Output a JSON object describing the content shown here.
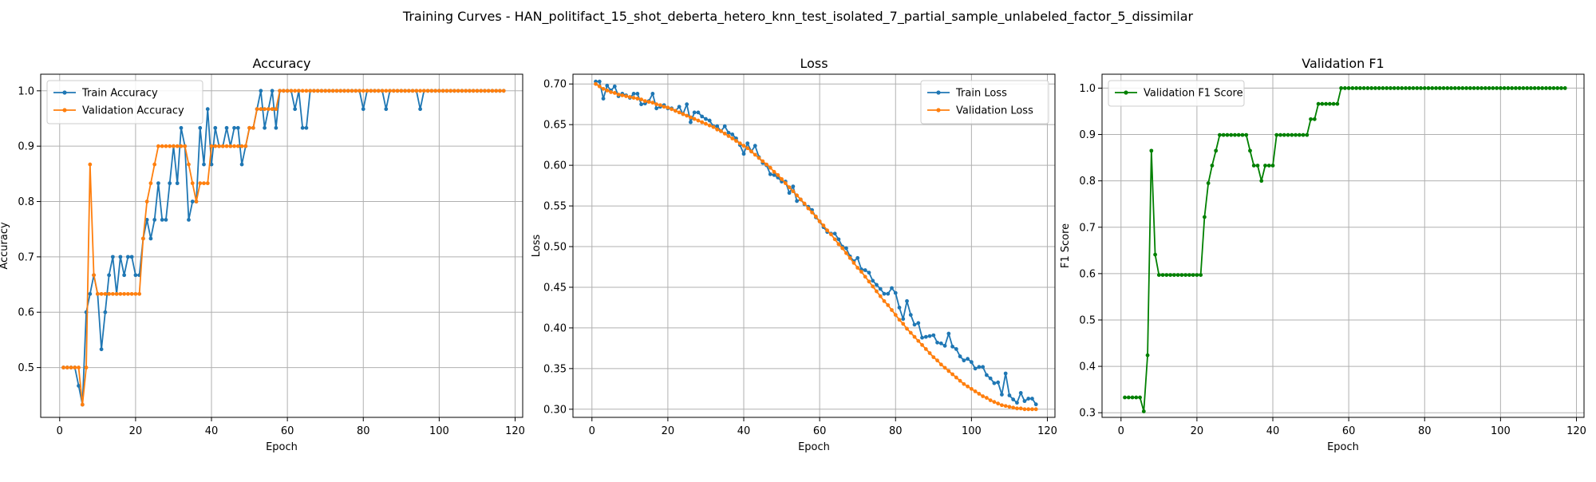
{
  "suptitle": "Training Curves - HAN_politifact_15_shot_deberta_hetero_knn_test_isolated_7_partial_sample_unlabeled_factor_5_dissimilar",
  "colors": {
    "blue": "#1f77b4",
    "orange": "#ff7f0e",
    "green": "#008000",
    "grid": "#b0b0b0"
  },
  "chart_data": [
    {
      "type": "line",
      "title": "Accuracy",
      "xlabel": "Epoch",
      "ylabel": "Accuracy",
      "xlim": [
        -5,
        122
      ],
      "ylim": [
        0.41,
        1.03
      ],
      "xticks": [
        0,
        20,
        40,
        60,
        80,
        100,
        120
      ],
      "yticks": [
        0.5,
        0.6,
        0.7,
        0.8,
        0.9,
        1.0
      ],
      "ytick_decimals": 1,
      "grid": true,
      "legend": "upper-left",
      "series": [
        {
          "name": "Train Accuracy",
          "color": "#1f77b4",
          "x_start": 1,
          "values": [
            0.5,
            0.5,
            0.5,
            0.5,
            0.467,
            0.433,
            0.6,
            0.633,
            0.667,
            0.633,
            0.533,
            0.6,
            0.667,
            0.7,
            0.633,
            0.7,
            0.667,
            0.7,
            0.7,
            0.667,
            0.667,
            0.733,
            0.767,
            0.733,
            0.767,
            0.833,
            0.767,
            0.767,
            0.833,
            0.9,
            0.833,
            0.933,
            0.9,
            0.767,
            0.8,
            0.8,
            0.933,
            0.867,
            0.967,
            0.867,
            0.933,
            0.9,
            0.9,
            0.933,
            0.9,
            0.933,
            0.933,
            0.867,
            0.9,
            0.933,
            0.933,
            0.967,
            1.0,
            0.933,
            0.967,
            1.0,
            0.933,
            1.0,
            1.0,
            1.0,
            1.0,
            0.967,
            1.0,
            0.933,
            0.933,
            1.0,
            1.0,
            1.0,
            1.0,
            1.0,
            1.0,
            1.0,
            1.0,
            1.0,
            1.0,
            1.0,
            1.0,
            1.0,
            1.0,
            0.967,
            1.0,
            1.0,
            1.0,
            1.0,
            1.0,
            0.967,
            1.0,
            1.0,
            1.0,
            1.0,
            1.0,
            1.0,
            1.0,
            1.0,
            0.967,
            1.0,
            1.0,
            1.0,
            1.0,
            1.0,
            1.0,
            1.0,
            1.0,
            1.0,
            1.0,
            1.0,
            1.0,
            1.0,
            1.0,
            1.0,
            1.0,
            1.0,
            1.0,
            1.0,
            1.0,
            1.0,
            1.0
          ]
        },
        {
          "name": "Validation Accuracy",
          "color": "#ff7f0e",
          "x_start": 1,
          "values": [
            0.5,
            0.5,
            0.5,
            0.5,
            0.5,
            0.433,
            0.5,
            0.867,
            0.667,
            0.633,
            0.633,
            0.633,
            0.633,
            0.633,
            0.633,
            0.633,
            0.633,
            0.633,
            0.633,
            0.633,
            0.633,
            0.733,
            0.8,
            0.833,
            0.867,
            0.9,
            0.9,
            0.9,
            0.9,
            0.9,
            0.9,
            0.9,
            0.9,
            0.867,
            0.833,
            0.8,
            0.833,
            0.833,
            0.833,
            0.9,
            0.9,
            0.9,
            0.9,
            0.9,
            0.9,
            0.9,
            0.9,
            0.9,
            0.9,
            0.933,
            0.933,
            0.967,
            0.967,
            0.967,
            0.967,
            0.967,
            0.967,
            1.0,
            1.0,
            1.0,
            1.0,
            1.0,
            1.0,
            1.0,
            1.0,
            1.0,
            1.0,
            1.0,
            1.0,
            1.0,
            1.0,
            1.0,
            1.0,
            1.0,
            1.0,
            1.0,
            1.0,
            1.0,
            1.0,
            1.0,
            1.0,
            1.0,
            1.0,
            1.0,
            1.0,
            1.0,
            1.0,
            1.0,
            1.0,
            1.0,
            1.0,
            1.0,
            1.0,
            1.0,
            1.0,
            1.0,
            1.0,
            1.0,
            1.0,
            1.0,
            1.0,
            1.0,
            1.0,
            1.0,
            1.0,
            1.0,
            1.0,
            1.0,
            1.0,
            1.0,
            1.0,
            1.0,
            1.0,
            1.0,
            1.0,
            1.0,
            1.0
          ]
        }
      ]
    },
    {
      "type": "line",
      "title": "Loss",
      "xlabel": "Epoch",
      "ylabel": "Loss",
      "xlim": [
        -5,
        122
      ],
      "ylim": [
        0.29,
        0.712
      ],
      "xticks": [
        0,
        20,
        40,
        60,
        80,
        100,
        120
      ],
      "yticks": [
        0.3,
        0.35,
        0.4,
        0.45,
        0.5,
        0.55,
        0.6,
        0.65,
        0.7
      ],
      "ytick_decimals": 2,
      "grid": true,
      "legend": "upper-right",
      "series": [
        {
          "name": "Train Loss",
          "color": "#1f77b4",
          "x_start": 1,
          "values": [
            0.703,
            0.703,
            0.682,
            0.698,
            0.692,
            0.697,
            0.685,
            0.688,
            0.686,
            0.683,
            0.688,
            0.688,
            0.675,
            0.676,
            0.679,
            0.688,
            0.67,
            0.672,
            0.674,
            0.67,
            0.67,
            0.667,
            0.672,
            0.663,
            0.675,
            0.653,
            0.665,
            0.665,
            0.66,
            0.657,
            0.655,
            0.648,
            0.648,
            0.642,
            0.648,
            0.64,
            0.638,
            0.633,
            0.625,
            0.614,
            0.627,
            0.617,
            0.624,
            0.61,
            0.603,
            0.6,
            0.589,
            0.588,
            0.585,
            0.58,
            0.58,
            0.566,
            0.574,
            0.556,
            0.558,
            0.552,
            0.549,
            0.545,
            0.536,
            0.531,
            0.524,
            0.518,
            0.516,
            0.516,
            0.509,
            0.5,
            0.498,
            0.488,
            0.482,
            0.486,
            0.472,
            0.471,
            0.468,
            0.458,
            0.453,
            0.448,
            0.442,
            0.442,
            0.449,
            0.443,
            0.425,
            0.411,
            0.433,
            0.416,
            0.404,
            0.406,
            0.388,
            0.389,
            0.39,
            0.391,
            0.382,
            0.381,
            0.378,
            0.393,
            0.377,
            0.374,
            0.365,
            0.36,
            0.362,
            0.358,
            0.35,
            0.352,
            0.352,
            0.342,
            0.338,
            0.332,
            0.333,
            0.318,
            0.344,
            0.317,
            0.312,
            0.308,
            0.32,
            0.31,
            0.313,
            0.313,
            0.306
          ]
        },
        {
          "name": "Validation Loss",
          "color": "#ff7f0e",
          "x_start": 1,
          "values": [
            0.7,
            0.697,
            0.694,
            0.692,
            0.69,
            0.689,
            0.687,
            0.686,
            0.685,
            0.684,
            0.683,
            0.682,
            0.681,
            0.679,
            0.678,
            0.677,
            0.675,
            0.674,
            0.672,
            0.671,
            0.669,
            0.667,
            0.665,
            0.663,
            0.661,
            0.659,
            0.657,
            0.655,
            0.653,
            0.651,
            0.649,
            0.647,
            0.644,
            0.642,
            0.639,
            0.636,
            0.633,
            0.63,
            0.627,
            0.624,
            0.621,
            0.617,
            0.613,
            0.609,
            0.605,
            0.601,
            0.597,
            0.592,
            0.588,
            0.583,
            0.578,
            0.573,
            0.568,
            0.563,
            0.558,
            0.553,
            0.547,
            0.542,
            0.537,
            0.531,
            0.526,
            0.52,
            0.515,
            0.509,
            0.503,
            0.498,
            0.492,
            0.486,
            0.48,
            0.474,
            0.469,
            0.463,
            0.457,
            0.451,
            0.445,
            0.439,
            0.433,
            0.428,
            0.422,
            0.416,
            0.41,
            0.405,
            0.399,
            0.394,
            0.389,
            0.384,
            0.379,
            0.374,
            0.369,
            0.364,
            0.36,
            0.355,
            0.351,
            0.347,
            0.343,
            0.339,
            0.335,
            0.331,
            0.328,
            0.325,
            0.322,
            0.319,
            0.316,
            0.314,
            0.311,
            0.309,
            0.307,
            0.305,
            0.304,
            0.303,
            0.302,
            0.301,
            0.301,
            0.3,
            0.3,
            0.3,
            0.3
          ]
        }
      ]
    },
    {
      "type": "line",
      "title": "Validation F1",
      "xlabel": "Epoch",
      "ylabel": "F1 Score",
      "xlim": [
        -5,
        122
      ],
      "ylim": [
        0.29,
        1.03
      ],
      "xticks": [
        0,
        20,
        40,
        60,
        80,
        100,
        120
      ],
      "yticks": [
        0.3,
        0.4,
        0.5,
        0.6,
        0.7,
        0.8,
        0.9,
        1.0
      ],
      "ytick_decimals": 1,
      "grid": true,
      "legend": "upper-left",
      "series": [
        {
          "name": "Validation F1 Score",
          "color": "#008000",
          "x_start": 1,
          "values": [
            0.333,
            0.333,
            0.333,
            0.333,
            0.333,
            0.303,
            0.424,
            0.865,
            0.641,
            0.597,
            0.597,
            0.597,
            0.597,
            0.597,
            0.597,
            0.597,
            0.597,
            0.597,
            0.597,
            0.597,
            0.597,
            0.722,
            0.795,
            0.833,
            0.865,
            0.899,
            0.899,
            0.899,
            0.899,
            0.899,
            0.899,
            0.899,
            0.899,
            0.865,
            0.833,
            0.833,
            0.8,
            0.833,
            0.833,
            0.833,
            0.899,
            0.899,
            0.899,
            0.899,
            0.899,
            0.899,
            0.899,
            0.899,
            0.899,
            0.933,
            0.933,
            0.966,
            0.966,
            0.966,
            0.966,
            0.966,
            0.966,
            1.0,
            1.0,
            1.0,
            1.0,
            1.0,
            1.0,
            1.0,
            1.0,
            1.0,
            1.0,
            1.0,
            1.0,
            1.0,
            1.0,
            1.0,
            1.0,
            1.0,
            1.0,
            1.0,
            1.0,
            1.0,
            1.0,
            1.0,
            1.0,
            1.0,
            1.0,
            1.0,
            1.0,
            1.0,
            1.0,
            1.0,
            1.0,
            1.0,
            1.0,
            1.0,
            1.0,
            1.0,
            1.0,
            1.0,
            1.0,
            1.0,
            1.0,
            1.0,
            1.0,
            1.0,
            1.0,
            1.0,
            1.0,
            1.0,
            1.0,
            1.0,
            1.0,
            1.0,
            1.0,
            1.0,
            1.0,
            1.0,
            1.0,
            1.0,
            1.0
          ]
        }
      ]
    }
  ]
}
